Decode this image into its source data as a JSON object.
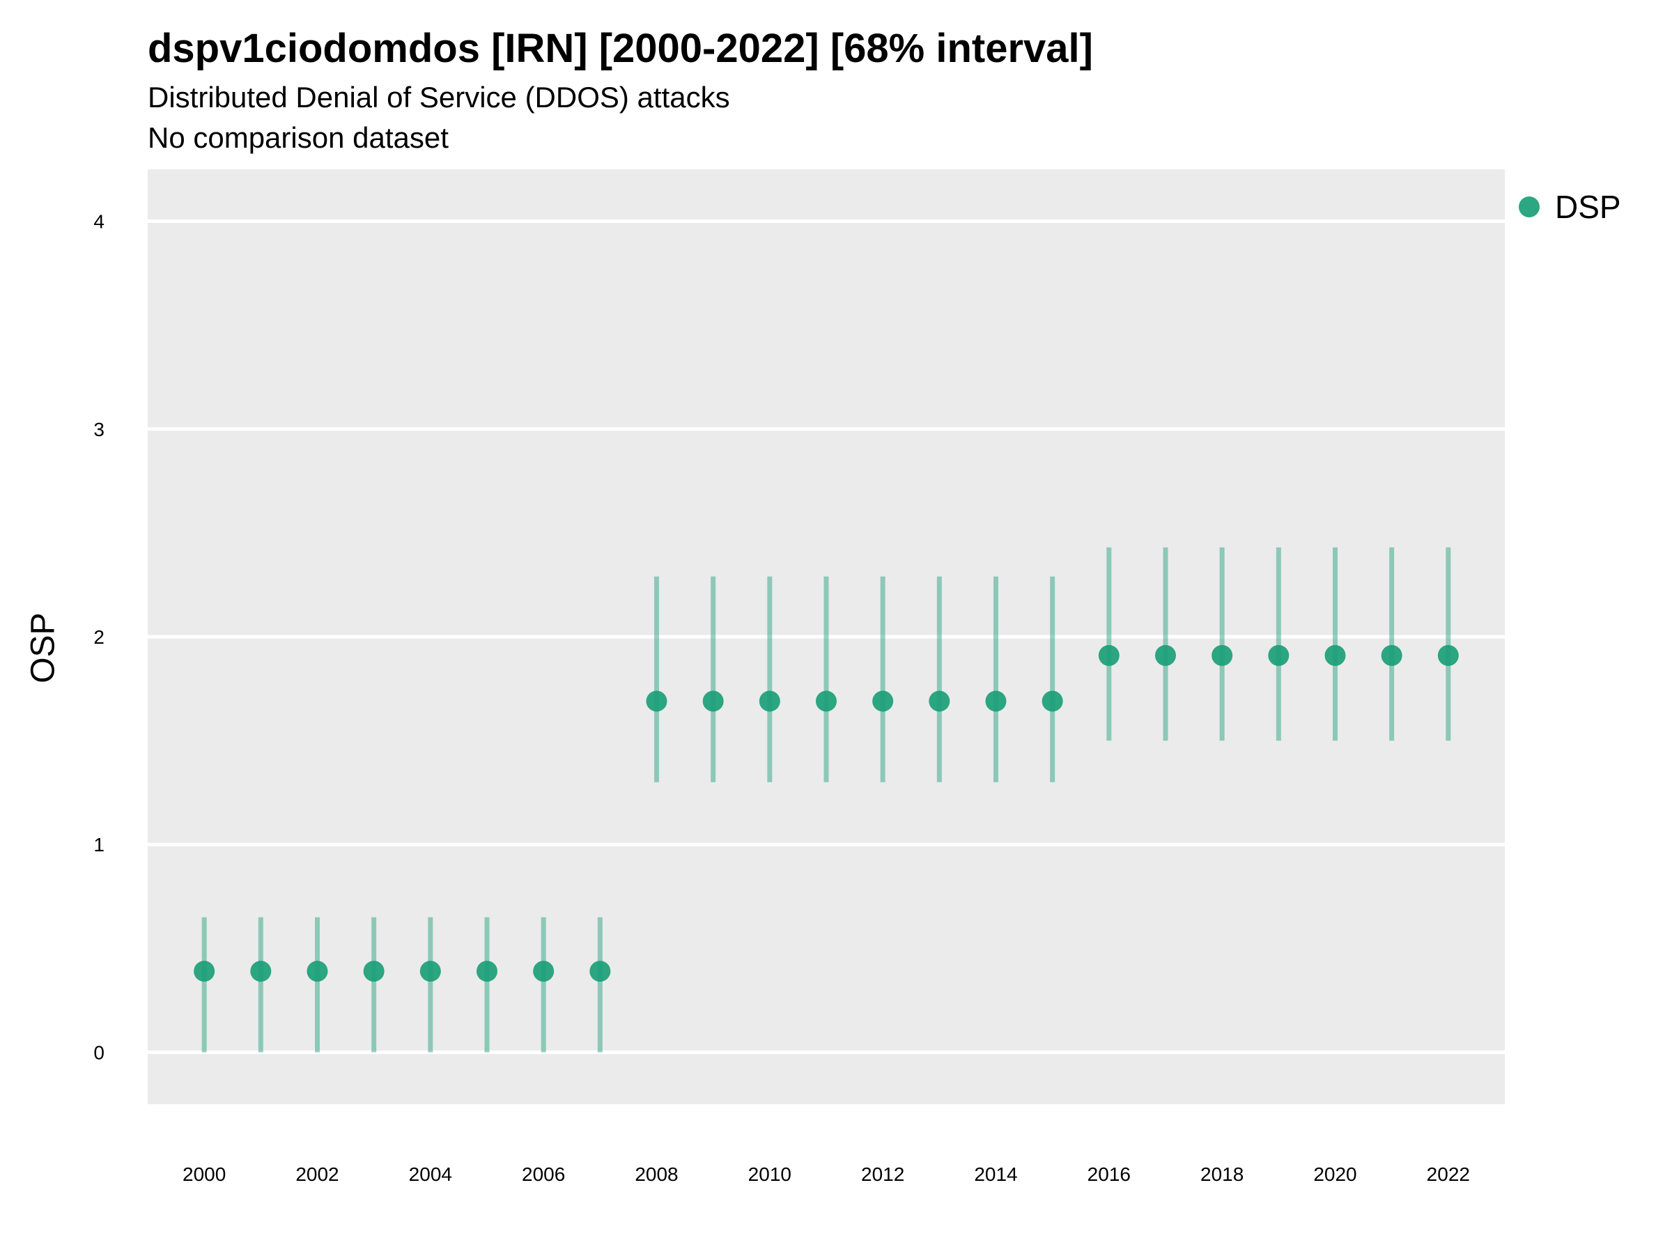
{
  "chart_data": {
    "type": "scatter",
    "title": "dspv1ciodomdos [IRN] [2000-2022] [68% interval]",
    "subtitle": "Distributed Denial of Service (DDOS) attacks",
    "subtitle2": "No comparison dataset",
    "xlabel": "",
    "ylabel": "OSP",
    "ylim": [
      -0.25,
      4.25
    ],
    "xlim": [
      1999,
      2023
    ],
    "yticks": [
      0,
      1,
      2,
      3,
      4
    ],
    "xticks": [
      2000,
      2002,
      2004,
      2006,
      2008,
      2010,
      2012,
      2014,
      2016,
      2018,
      2020,
      2022
    ],
    "grid": true,
    "legend_position": "top-right",
    "series": [
      {
        "name": "DSP",
        "color": "#1b9e77",
        "x": [
          2000,
          2001,
          2002,
          2003,
          2004,
          2005,
          2006,
          2007,
          2008,
          2009,
          2010,
          2011,
          2012,
          2013,
          2014,
          2015,
          2016,
          2017,
          2018,
          2019,
          2020,
          2021,
          2022
        ],
        "y": [
          0.39,
          0.39,
          0.39,
          0.39,
          0.39,
          0.39,
          0.39,
          0.39,
          1.69,
          1.69,
          1.69,
          1.69,
          1.69,
          1.69,
          1.69,
          1.69,
          1.91,
          1.91,
          1.91,
          1.91,
          1.91,
          1.91,
          1.91
        ],
        "lower": [
          0.0,
          0.0,
          0.0,
          0.0,
          0.0,
          0.0,
          0.0,
          0.0,
          1.3,
          1.3,
          1.3,
          1.3,
          1.3,
          1.3,
          1.3,
          1.3,
          1.5,
          1.5,
          1.5,
          1.5,
          1.5,
          1.5,
          1.5
        ],
        "upper": [
          0.65,
          0.65,
          0.65,
          0.65,
          0.65,
          0.65,
          0.65,
          0.65,
          2.29,
          2.29,
          2.29,
          2.29,
          2.29,
          2.29,
          2.29,
          2.29,
          2.43,
          2.43,
          2.43,
          2.43,
          2.43,
          2.43,
          2.43
        ]
      }
    ]
  }
}
